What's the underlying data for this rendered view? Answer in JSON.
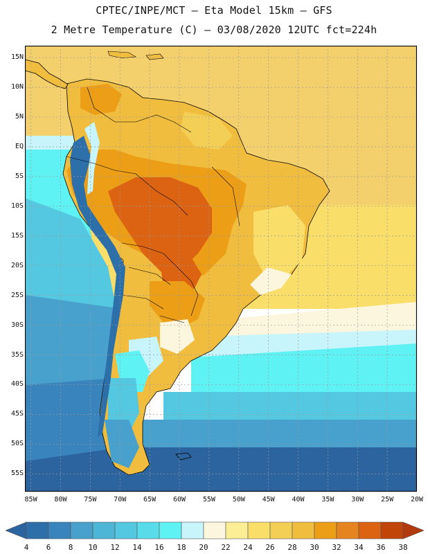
{
  "header": {
    "line1": "CPTEC/INPE/MCT –  Eta Model 15km – GFS",
    "line2": "2 Metre Temperature (C) – 03/08/2020 12UTC fct=224h"
  },
  "map": {
    "latitude_labels": [
      "15N",
      "10N",
      "5N",
      "EQ",
      "5S",
      "10S",
      "15S",
      "20S",
      "25S",
      "30S",
      "35S",
      "40S",
      "45S",
      "50S",
      "55S"
    ],
    "longitude_labels": [
      "85W",
      "80W",
      "75W",
      "70W",
      "65W",
      "60W",
      "55W",
      "50W",
      "45W",
      "40W",
      "35W",
      "30W",
      "25W",
      "20W"
    ],
    "lon_range": [
      -86,
      -20
    ],
    "lat_range": [
      -58,
      17
    ],
    "grid_step_deg": 5
  },
  "colorbar": {
    "labels": [
      "4",
      "6",
      "8",
      "10",
      "12",
      "14",
      "16",
      "18",
      "20",
      "22",
      "24",
      "26",
      "28",
      "30",
      "32",
      "34",
      "36",
      "38"
    ],
    "colors": [
      "#2d6fa9",
      "#3a84bd",
      "#48a0cc",
      "#4db6d6",
      "#53c8e0",
      "#58dce9",
      "#5ff2f5",
      "#c8f4fb",
      "#fdf6de",
      "#fcee95",
      "#f9de69",
      "#f4cf55",
      "#f0bd3e",
      "#ec9e17",
      "#e6851f",
      "#dc6312",
      "#c14507"
    ],
    "under_color": "#2c64a0",
    "over_color": "#b1390c"
  },
  "field_colors": {
    "ocean_cold": "#2c64a0",
    "ocean_cool": "#48a0cc",
    "ocean_mid": "#53c8e0",
    "ocean_warm": "#5ff2f5",
    "pale": "#c8f4fb",
    "cream": "#fdf6de",
    "yellow_low": "#f9de69",
    "yellow": "#f4cf55",
    "ocean_tropical": "#f4d06c",
    "gold": "#f0bd3e",
    "orange": "#ec9e17",
    "dark_orange": "#dc6312",
    "andes_cold": "#2d6fa9",
    "coast": "#000000",
    "grid": "#9a9a9a"
  }
}
